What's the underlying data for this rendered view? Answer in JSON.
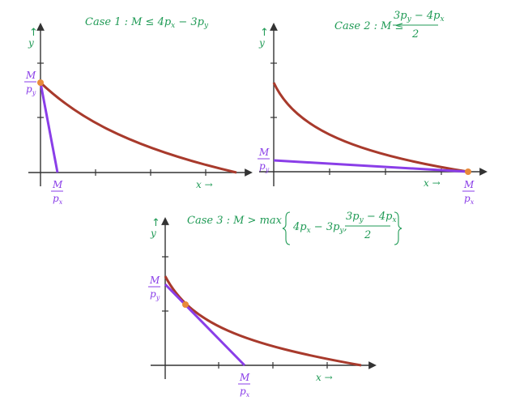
{
  "colors": {
    "indifference_curve": "#a83a2c",
    "budget_line": "#8a3ee8",
    "optimum_point": "#e88a3a",
    "title_text": "#1f9a55",
    "axis_line": "#333333"
  },
  "panels": [
    {
      "id": "case1",
      "title_prefix": "Case 1 : M ≤ 4p",
      "title_sub1": "x",
      "title_mid": " − 3p",
      "title_sub2": "y",
      "y_label": "y",
      "x_label": "x →",
      "y_intercept_num": "M",
      "y_intercept_den": "p",
      "y_intercept_den_sub": "y",
      "x_intercept_num": "M",
      "x_intercept_den": "p",
      "x_intercept_den_sub": "x",
      "optimum": "corner at y-intercept"
    },
    {
      "id": "case2",
      "title_prefix": "Case 2 : M ≤",
      "title_frac_num": "3p",
      "title_frac_num_sub1": "y",
      "title_frac_num_mid": " − 4p",
      "title_frac_num_sub2": "x",
      "title_frac_den": "2",
      "y_label": "y",
      "x_label": "x →",
      "y_intercept_num": "M",
      "y_intercept_den": "p",
      "y_intercept_den_sub": "y",
      "x_intercept_num": "M",
      "x_intercept_den": "p",
      "x_intercept_den_sub": "x",
      "optimum": "corner at x-intercept"
    },
    {
      "id": "case3",
      "title_prefix": "Case 3 : M > max",
      "title_part1": "4p",
      "title_part1_sub1": "x",
      "title_part1_mid": " − 3p",
      "title_part1_sub2": "y",
      "title_comma": ",",
      "title_frac_num": "3p",
      "title_frac_num_sub1": "y",
      "title_frac_num_mid": " − 4p",
      "title_frac_num_sub2": "x",
      "title_frac_den": "2",
      "y_label": "y",
      "x_label": "x →",
      "y_intercept_num": "M",
      "y_intercept_den": "p",
      "y_intercept_den_sub": "y",
      "x_intercept_num": "M",
      "x_intercept_den": "p",
      "x_intercept_den_sub": "x",
      "optimum": "interior tangency"
    }
  ]
}
